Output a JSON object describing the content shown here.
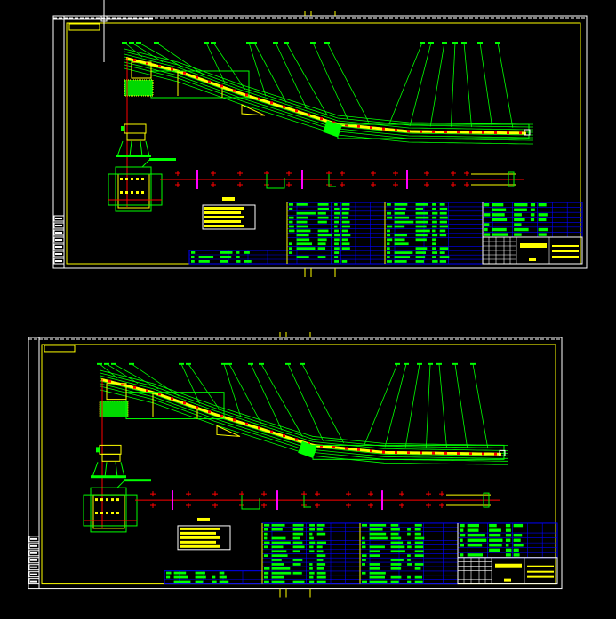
{
  "viewer": {
    "background": "#000000",
    "sheet_count": 2
  },
  "colors": {
    "frame": "#ffffff",
    "border": "#ffff00",
    "geometry": "#00ff00",
    "centerline": "#ff0000",
    "belt": "#ffff00",
    "marker": "#ff00ff",
    "table_grid": "#0000ff",
    "table_text": "#00ff00"
  },
  "sheets": [
    {
      "id": "sheet-1"
    },
    {
      "id": "sheet-2"
    }
  ]
}
